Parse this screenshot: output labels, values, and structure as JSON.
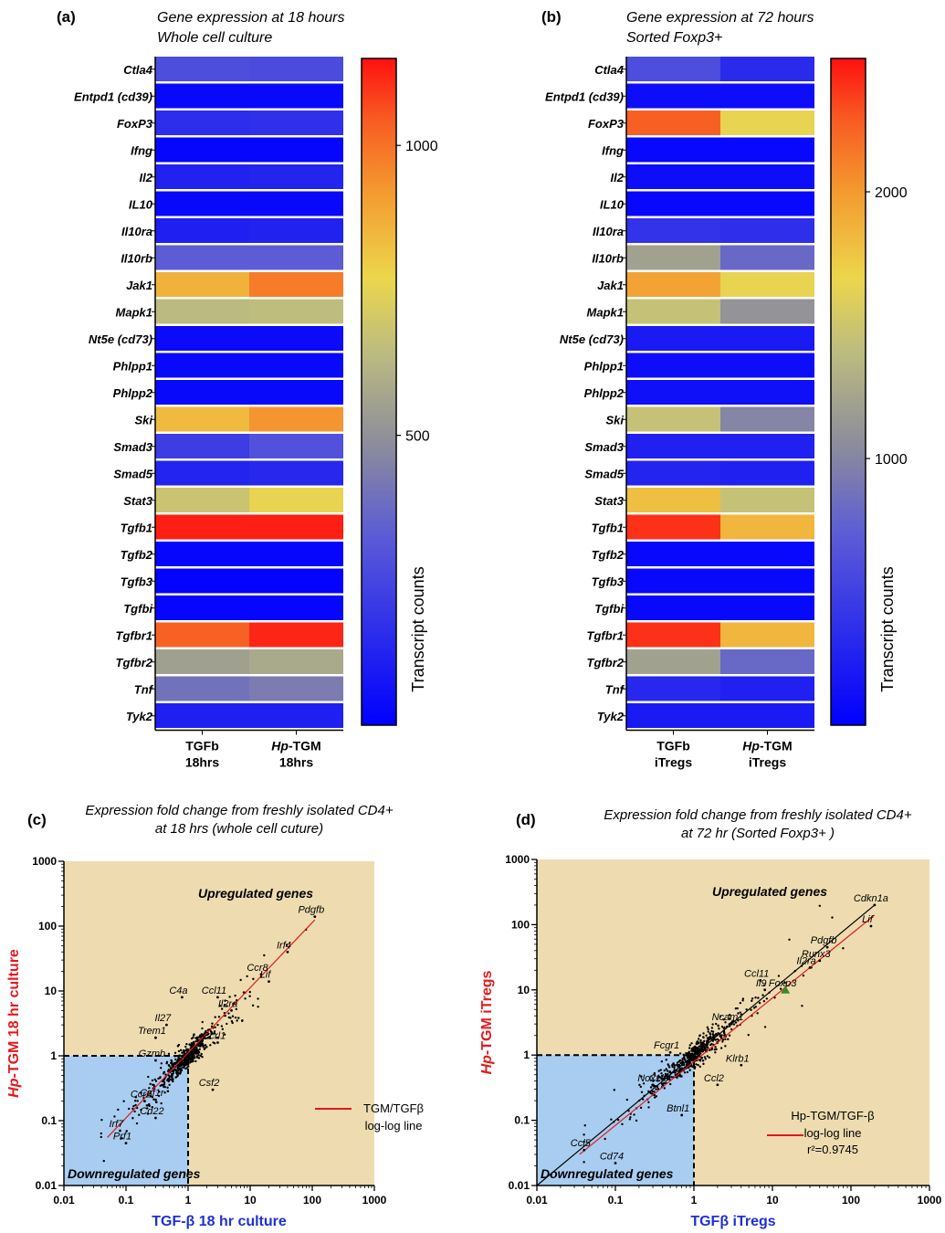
{
  "colors": {
    "low": "#0000ff",
    "mid": "#eadc4f",
    "high": "#ff0000",
    "quadrant_bg": "#eedcb0",
    "downregulated_bg": "#a9cdf0",
    "fit_line": "#e0191d",
    "identity_line": "#000000",
    "y_axis_title": "#e31a1c",
    "x_axis_title": "#1f2fd6"
  },
  "chart_data": [
    {
      "panel": "(a)",
      "type": "heatmap",
      "title": "Gene expression at 18 hours",
      "subtitle": "Whole cell culture",
      "rows": [
        "Ctla4",
        "Entpd1 (cd39)",
        "FoxP3",
        "Ifng",
        "Il2",
        "IL10",
        "Il10ra",
        "Il10rb",
        "Jak1",
        "Mapk1",
        "Nt5e (cd73)",
        "Phlpp1",
        "Phlpp2",
        "Ski",
        "Smad3",
        "Smad5",
        "Stat3",
        "Tgfb1",
        "Tgfb2",
        "Tgfb3",
        "Tgfbi",
        "Tgfbr1",
        "Tgfbr2",
        "Tnf",
        "Tyk2"
      ],
      "columns": [
        {
          "prefix": "",
          "name": "TGFb",
          "sub": "18hrs"
        },
        {
          "prefix": "Hp",
          "name": "-TGM",
          "sub": "18hrs"
        }
      ],
      "values": [
        [
          280,
          270
        ],
        [
          30,
          30
        ],
        [
          160,
          170
        ],
        [
          20,
          20
        ],
        [
          120,
          130
        ],
        [
          30,
          30
        ],
        [
          110,
          120
        ],
        [
          330,
          330
        ],
        [
          860,
          980
        ],
        [
          640,
          650
        ],
        [
          40,
          40
        ],
        [
          30,
          30
        ],
        [
          30,
          30
        ],
        [
          840,
          930
        ],
        [
          220,
          290
        ],
        [
          130,
          140
        ],
        [
          680,
          760
        ],
        [
          1130,
          1130
        ],
        [
          20,
          20
        ],
        [
          10,
          10
        ],
        [
          20,
          20
        ],
        [
          1030,
          1120
        ],
        [
          550,
          580
        ],
        [
          400,
          430
        ],
        [
          110,
          110
        ]
      ],
      "colorbar": {
        "min": 0,
        "max": 1150,
        "ticks": [
          500,
          1000
        ],
        "label": "Transcript counts"
      }
    },
    {
      "panel": "(b)",
      "type": "heatmap",
      "title": "Gene expression at 72 hours",
      "subtitle": "Sorted Foxp3+",
      "rows": [
        "Ctla4",
        "Entpd1 (cd39)",
        "FoxP3",
        "Ifng",
        "Il2",
        "IL10",
        "Il10ra",
        "Il10rb",
        "Jak1",
        "Mapk1",
        "Nt5e (cd73)",
        "Phlpp1",
        "Phlpp2",
        "Ski",
        "Smad3",
        "Smad5",
        "Stat3",
        "Tgfb1",
        "Tgfb2",
        "Tgfb3",
        "Tgfbi",
        "Tgfbr1",
        "Tgfbr2",
        "Tnf",
        "Tyk2"
      ],
      "columns": [
        {
          "prefix": "",
          "name": "TGFb",
          "sub": "iTregs"
        },
        {
          "prefix": "Hp",
          "name": "-TGM",
          "sub": "iTregs"
        }
      ],
      "values": [
        [
          600,
          330
        ],
        [
          100,
          100
        ],
        [
          2250,
          1650
        ],
        [
          60,
          60
        ],
        [
          100,
          100
        ],
        [
          60,
          60
        ],
        [
          400,
          360
        ],
        [
          1200,
          800
        ],
        [
          1950,
          1650
        ],
        [
          1450,
          1100
        ],
        [
          200,
          200
        ],
        [
          100,
          100
        ],
        [
          120,
          120
        ],
        [
          1450,
          1000
        ],
        [
          250,
          250
        ],
        [
          280,
          250
        ],
        [
          1800,
          1450
        ],
        [
          2400,
          1850
        ],
        [
          60,
          60
        ],
        [
          60,
          60
        ],
        [
          60,
          60
        ],
        [
          2400,
          1850
        ],
        [
          1200,
          800
        ],
        [
          300,
          250
        ],
        [
          200,
          200
        ]
      ],
      "colorbar": {
        "min": 0,
        "max": 2500,
        "ticks": [
          1000,
          2000
        ],
        "label": "Transcript counts"
      }
    },
    {
      "panel": "(c)",
      "type": "scatter",
      "title": "Expression fold change from freshly isolated CD4+",
      "subtitle": "at 18 hrs (whole cell cuture)",
      "xlabel": "TGF-β 18 hr culture",
      "ylabel_parts": [
        "Hp",
        "-TGM  18 hr culture"
      ],
      "xscale": "log",
      "yscale": "log",
      "xlim": [
        0.01,
        1000
      ],
      "ylim": [
        0.01,
        1000
      ],
      "ticks": [
        "0.01",
        "0.1",
        "1",
        "10",
        "100",
        "1000"
      ],
      "region_labels": {
        "up": "Upregulated genes",
        "down": "Downregulated genes"
      },
      "legend": {
        "line1": "TGM/TGFβ",
        "line2": "log-log line",
        "r2": ""
      },
      "fit_line": [
        [
          0.05,
          0.055
        ],
        [
          110,
          125
        ]
      ],
      "identity_line": false,
      "labels": [
        {
          "gene": "Pdgfb",
          "x": 110,
          "y": 140
        },
        {
          "gene": "Irf4",
          "x": 40,
          "y": 40
        },
        {
          "gene": "Ccr8",
          "x": 15,
          "y": 18
        },
        {
          "gene": "Lif",
          "x": 20,
          "y": 14
        },
        {
          "gene": "Ccl11",
          "x": 3,
          "y": 8
        },
        {
          "gene": "C4a",
          "x": 0.8,
          "y": 8
        },
        {
          "gene": "Il2ra",
          "x": 5,
          "y": 5
        },
        {
          "gene": "Ccrl1",
          "x": 3,
          "y": 1.6
        },
        {
          "gene": "Il27",
          "x": 0.45,
          "y": 3
        },
        {
          "gene": "Trem1",
          "x": 0.3,
          "y": 1.9
        },
        {
          "gene": "Gzmb",
          "x": 0.3,
          "y": 0.85
        },
        {
          "gene": "Csf2",
          "x": 2.5,
          "y": 0.3
        },
        {
          "gene": "Ccr2",
          "x": 0.2,
          "y": 0.2
        },
        {
          "gene": "Csf1r",
          "x": 0.3,
          "y": 0.21
        },
        {
          "gene": "Irf7",
          "x": 0.08,
          "y": 0.07
        },
        {
          "gene": "Prf1",
          "x": 0.1,
          "y": 0.045
        },
        {
          "gene": "Cd22",
          "x": 0.3,
          "y": 0.11
        }
      ]
    },
    {
      "panel": "(d)",
      "type": "scatter",
      "title": "Expression fold change from freshly isolated CD4+",
      "subtitle": "at 72 hr (Sorted Foxp3+ )",
      "xlabel": "TGFβ iTregs",
      "ylabel_parts": [
        "Hp",
        "-TGM iTregs"
      ],
      "xscale": "log",
      "yscale": "log",
      "xlim": [
        0.01,
        1000
      ],
      "ylim": [
        0.01,
        1000
      ],
      "ticks": [
        "0.01",
        "0.1",
        "1",
        "10",
        "100",
        "1000"
      ],
      "region_labels": {
        "up": "Upregulated genes",
        "down": "Downregulated genes"
      },
      "legend": {
        "line1": "Hp-TGM/TGF-β",
        "line2": "log-log line",
        "r2": "r²=0.9745"
      },
      "fit_line": [
        [
          0.035,
          0.03
        ],
        [
          200,
          140
        ]
      ],
      "identity_line": true,
      "labels": [
        {
          "gene": "Cdkn1a",
          "x": 200,
          "y": 200
        },
        {
          "gene": "Lif",
          "x": 180,
          "y": 95
        },
        {
          "gene": "Pdgfb",
          "x": 50,
          "y": 45
        },
        {
          "gene": "Runx3",
          "x": 40,
          "y": 28
        },
        {
          "gene": "Il2ra",
          "x": 30,
          "y": 22
        },
        {
          "gene": "Ccl11",
          "x": 7,
          "y": 14
        },
        {
          "gene": "Il9",
          "x": 8,
          "y": 10
        },
        {
          "gene": "Foxp3",
          "x": 15,
          "y": 10
        },
        {
          "gene": "Ncam1",
          "x": 3,
          "y": 3
        },
        {
          "gene": "Fcgr1",
          "x": 0.5,
          "y": 1.1
        },
        {
          "gene": "Klrb1",
          "x": 4,
          "y": 0.7
        },
        {
          "gene": "Nox1",
          "x": 0.3,
          "y": 0.35
        },
        {
          "gene": "Ccl9",
          "x": 0.4,
          "y": 0.35
        },
        {
          "gene": "Ccl2",
          "x": 2,
          "y": 0.35
        },
        {
          "gene": "Btnl1",
          "x": 0.7,
          "y": 0.12
        },
        {
          "gene": "Ccl5",
          "x": 0.04,
          "y": 0.035
        },
        {
          "gene": "Cd74",
          "x": 0.1,
          "y": 0.022
        }
      ]
    }
  ]
}
